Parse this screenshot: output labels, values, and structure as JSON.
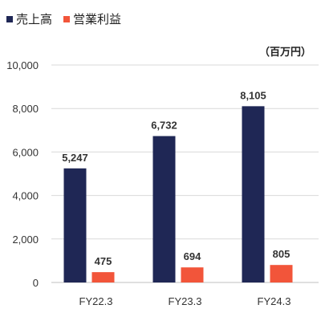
{
  "chart_data": {
    "type": "bar",
    "categories": [
      "FY22.3",
      "FY23.3",
      "FY24.3"
    ],
    "series": [
      {
        "name": "売上高",
        "values": [
          5247,
          6732,
          8105
        ],
        "labels": [
          "5,247",
          "6,732",
          "8,105"
        ],
        "color": "#1f2755"
      },
      {
        "name": "営業利益",
        "values": [
          475,
          694,
          805
        ],
        "labels": [
          "475",
          "694",
          "805"
        ],
        "color": "#f2553a"
      }
    ],
    "unit": "（百万円）",
    "ylim": [
      0,
      10000
    ],
    "yticks": [
      0,
      2000,
      4000,
      6000,
      8000,
      10000
    ],
    "ytick_labels": [
      "0",
      "2,000",
      "4,000",
      "6,000",
      "8,000",
      "10,000"
    ],
    "grid": true,
    "legend": "top-left"
  }
}
